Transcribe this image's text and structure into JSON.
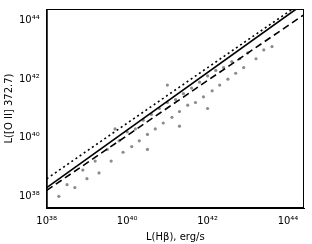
{
  "chart_data": {
    "type": "scatter",
    "x_label": "L(Hβ), erg/s",
    "y_label": "L([O II] 372.7)",
    "log": true,
    "grid": false,
    "xlim": [
      1e+38,
      2.5e+44
    ],
    "ylim": [
      4e+37,
      2.5e+44
    ],
    "xticks": [
      {
        "value": 1e+38,
        "label": "10³⁸"
      },
      {
        "value": 1e+40,
        "label": "10⁴⁰"
      },
      {
        "value": 1e+42,
        "label": "10⁴²"
      },
      {
        "value": 1e+44,
        "label": "10⁴⁴"
      }
    ],
    "yticks": [
      {
        "value": 1e+38,
        "label": "10³⁸"
      },
      {
        "value": 1e+40,
        "label": "10⁴⁰"
      },
      {
        "value": 1e+42,
        "label": "10⁴²"
      },
      {
        "value": 1e+44,
        "label": "10⁴⁴"
      }
    ],
    "series": [
      {
        "type": "scatter",
        "color": "#8c8c8c",
        "marker": "circle",
        "x": [
          2e+38,
          3.2e+38,
          5e+38,
          7.9e+38,
          1e+39,
          1.6e+39,
          2e+39,
          3.2e+39,
          4e+39,
          6.3e+39,
          7.9e+39,
          1e+40,
          1.3e+40,
          1.6e+40,
          2e+40,
          2.5e+40,
          3.2e+40,
          4e+40,
          5e+40,
          6.3e+40,
          7.9e+40,
          1e+41,
          1.3e+41,
          1.6e+41,
          2e+41,
          2.5e+41,
          3.2e+41,
          4e+41,
          5e+41,
          6.3e+41,
          7.9e+41,
          1e+42,
          1.3e+42,
          1.6e+42,
          2e+42,
          2.5e+42,
          3.2e+42,
          4e+42,
          5e+42,
          6.3e+42,
          7.9e+42,
          1e+43,
          1.6e+43,
          2.5e+43,
          4e+43,
          3.2e+40,
          2e+41,
          1e+42,
          5e+39,
          1e+41
        ],
        "values": [
          1e+38,
          2.5e+38,
          2e+38,
          7.9e+38,
          4e+38,
          1.6e+39,
          6.3e+38,
          4e+39,
          1.6e+39,
          7.9e+39,
          3.2e+39,
          1.6e+40,
          5e+39,
          2e+40,
          7.9e+39,
          4e+40,
          1.3e+40,
          6.3e+40,
          2e+40,
          1e+41,
          3.2e+40,
          1.6e+41,
          5e+40,
          2e+41,
          7.9e+40,
          3.2e+41,
          1.3e+41,
          5e+41,
          1.6e+41,
          7.9e+41,
          2.5e+41,
          1.3e+42,
          4e+41,
          2e+42,
          6.3e+41,
          2.5e+42,
          1e+42,
          4e+42,
          1.6e+42,
          5e+42,
          2.5e+42,
          7.9e+42,
          5e+42,
          1e+43,
          1.3e+43,
          4e+39,
          2.5e+40,
          1e+41,
          2e+40,
          6.3e+41
        ]
      },
      {
        "type": "line",
        "color": "#000000",
        "line_style": "solid",
        "x": [
          1e+38,
          1.6e+44
        ],
        "values": [
          2e+38,
          2.5e+44
        ]
      },
      {
        "type": "line",
        "color": "#000000",
        "line_style": "dashed",
        "x": [
          1e+38,
          2.5e+44
        ],
        "values": [
          1.6e+38,
          1.6e+44
        ]
      },
      {
        "type": "line",
        "color": "#000000",
        "line_style": "dotted",
        "x": [
          1e+38,
          1.3e+44
        ],
        "values": [
          4e+38,
          2.5e+44
        ]
      }
    ]
  }
}
